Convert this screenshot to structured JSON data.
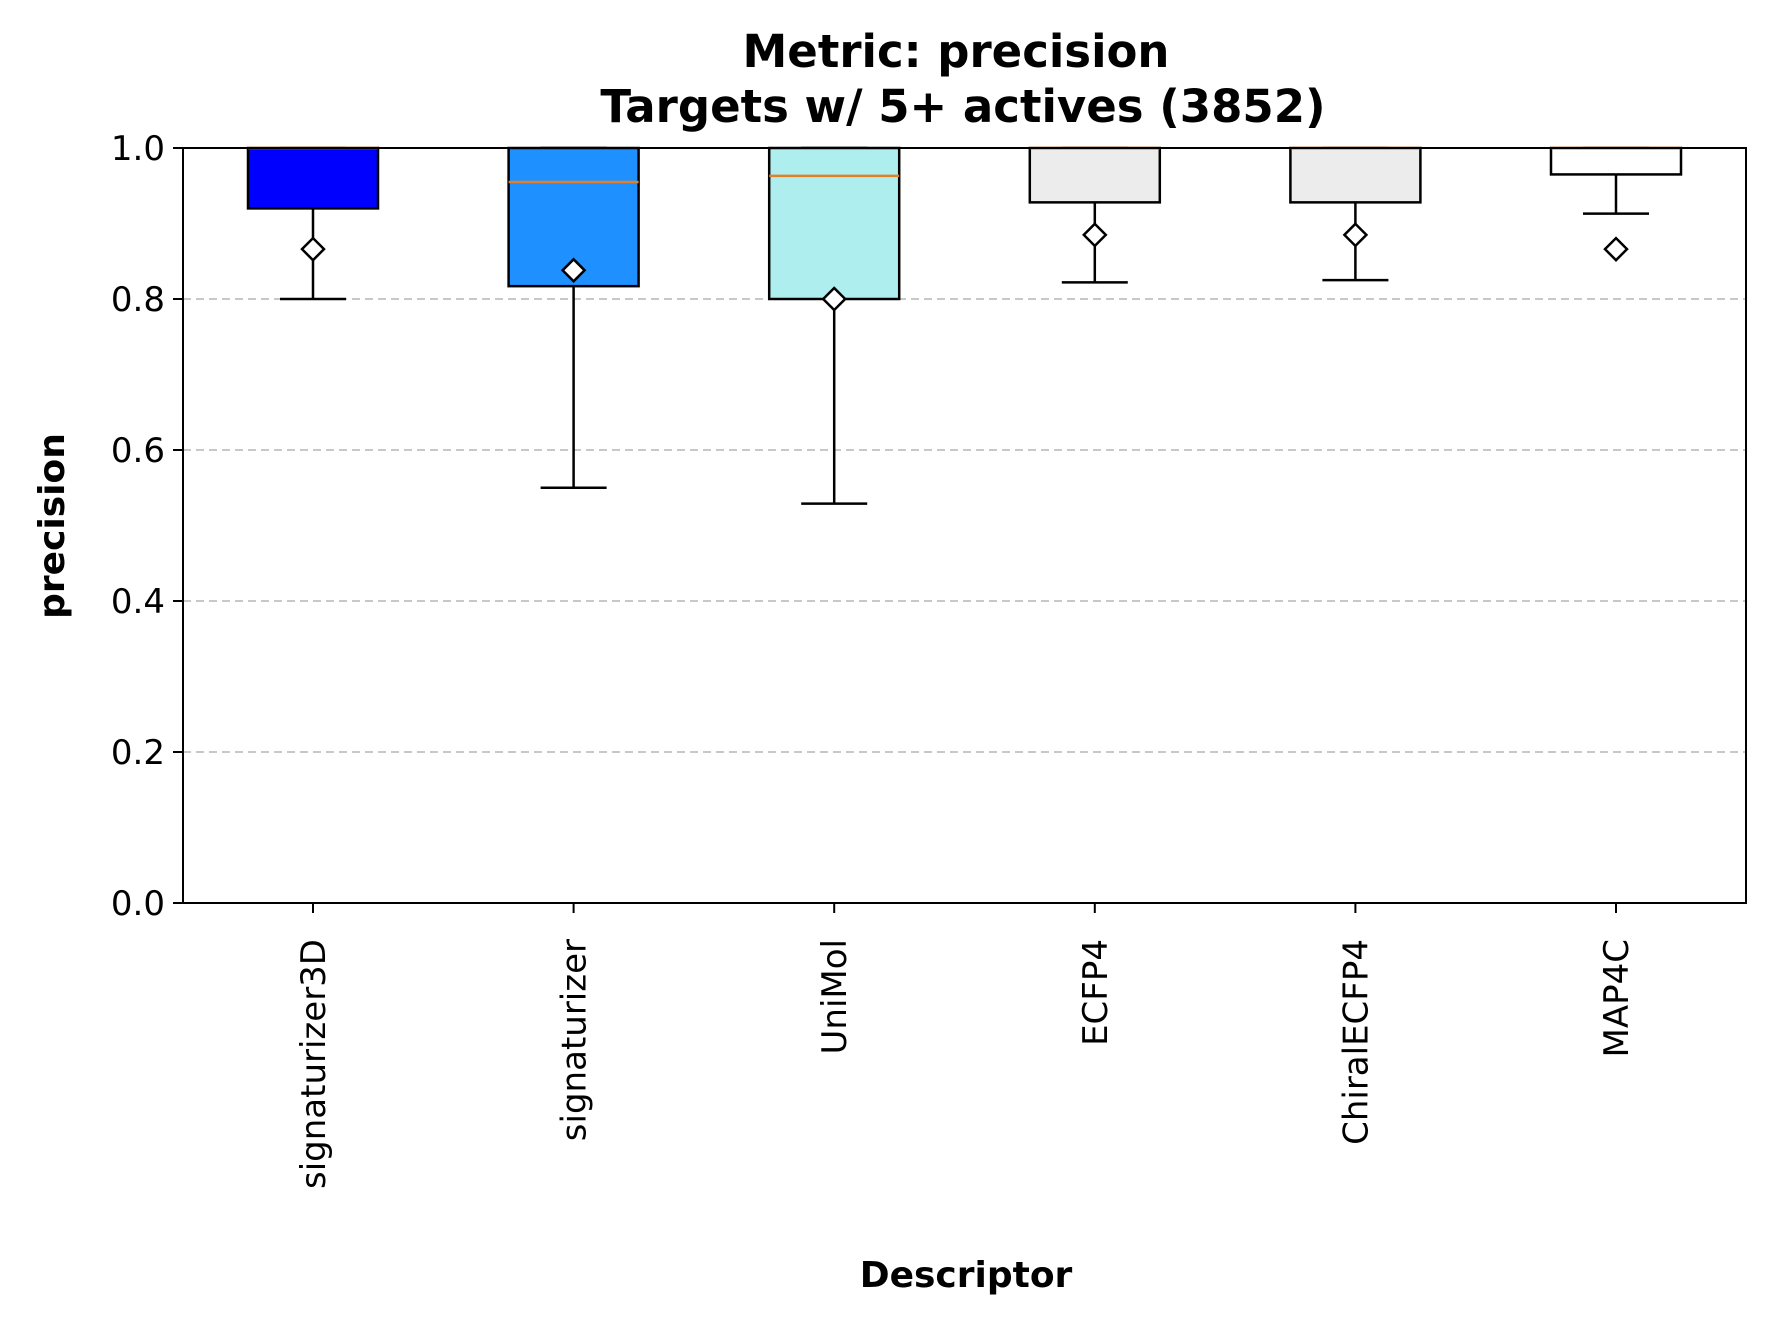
{
  "chart_data": {
    "type": "box",
    "title_lines": [
      "Metric: precision",
      "Targets w/ 5+ actives (3852)"
    ],
    "xlabel": "Descriptor",
    "ylabel": "precision",
    "ylim": [
      0.0,
      1.0
    ],
    "yticks": [
      0.0,
      0.2,
      0.4,
      0.6,
      0.8,
      1.0
    ],
    "ytick_labels": [
      "0.0",
      "0.2",
      "0.4",
      "0.6",
      "0.8",
      "1.0"
    ],
    "grid": "y, dashed",
    "categories": [
      "signaturizer3D",
      "signaturizer",
      "UniMol",
      "ECFP4",
      "ChiralECFP4",
      "MAP4C"
    ],
    "boxes": [
      {
        "label": "signaturizer3D",
        "whisker_low": 0.8,
        "q1": 0.92,
        "median": 1.0,
        "q3": 1.0,
        "whisker_high": 1.0,
        "mean": 0.866,
        "color": "#0000ff"
      },
      {
        "label": "signaturizer",
        "whisker_low": 0.55,
        "q1": 0.817,
        "median": 0.955,
        "q3": 1.0,
        "whisker_high": 1.0,
        "mean": 0.838,
        "color": "#1e90ff"
      },
      {
        "label": "UniMol",
        "whisker_low": 0.529,
        "q1": 0.8,
        "median": 0.963,
        "q3": 1.0,
        "whisker_high": 1.0,
        "mean": 0.8,
        "color": "#afeeee"
      },
      {
        "label": "ECFP4",
        "whisker_low": 0.822,
        "q1": 0.928,
        "median": 1.0,
        "q3": 1.0,
        "whisker_high": 1.0,
        "mean": 0.885,
        "color": "#ececec"
      },
      {
        "label": "ChiralECFP4",
        "whisker_low": 0.825,
        "q1": 0.928,
        "median": 1.0,
        "q3": 1.0,
        "whisker_high": 1.0,
        "mean": 0.885,
        "color": "#ececec"
      },
      {
        "label": "MAP4C",
        "whisker_low": 0.913,
        "q1": 0.965,
        "median": 1.0,
        "q3": 1.0,
        "whisker_high": 1.0,
        "mean": 0.866,
        "color": "#ffffff"
      }
    ]
  }
}
